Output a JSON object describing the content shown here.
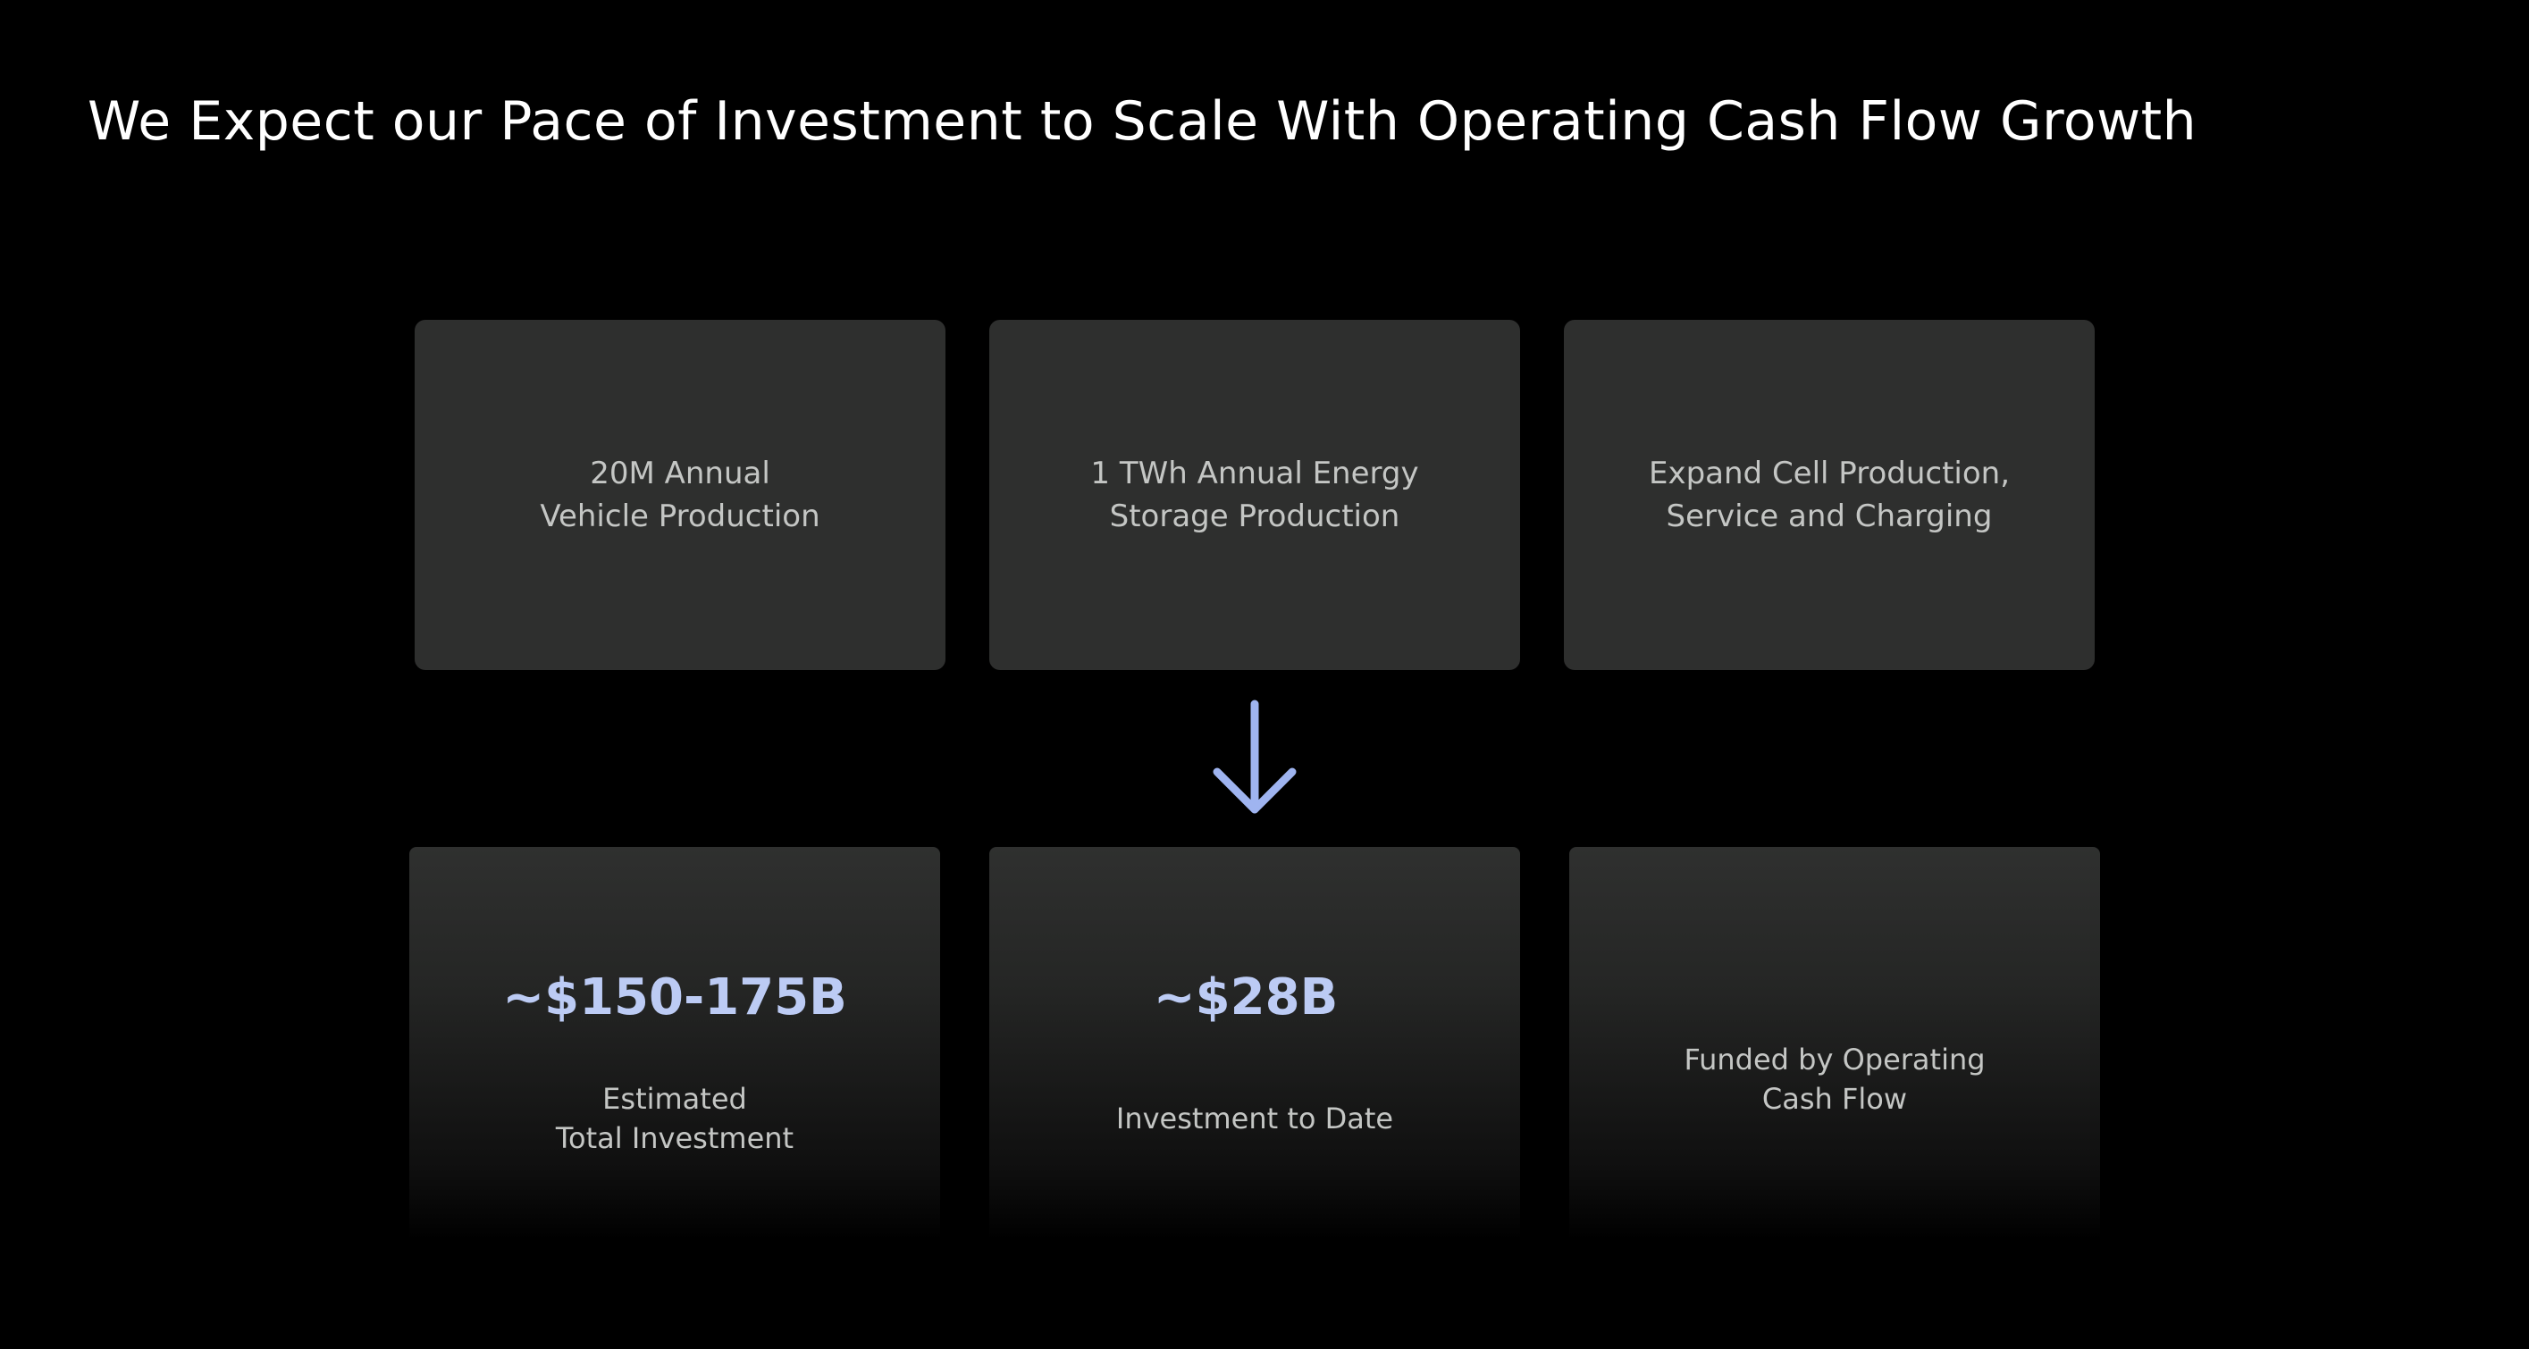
{
  "slide": {
    "title": "We Expect our Pace of Investment to Scale With Operating Cash Flow Growth"
  },
  "goals": [
    {
      "label": "20M Annual\nVehicle Production"
    },
    {
      "label": "1 TWh Annual Energy\nStorage Production"
    },
    {
      "label": "Expand Cell Production,\nService and Charging"
    }
  ],
  "arrow": {
    "icon": "arrow-down-icon",
    "color": "#9fb4f0"
  },
  "investment": {
    "total": {
      "value": "~$150-175B",
      "label": "Estimated\nTotal Investment"
    },
    "to_date": {
      "value": "~$28B",
      "label": "Investment to Date"
    },
    "funding": {
      "label": "Funded by Operating\nCash Flow"
    }
  },
  "colors": {
    "background": "#000000",
    "card": "#2e2f2e",
    "accent_value": "#bccbf4",
    "label_text": "#c4c6c4",
    "title_text": "#ffffff"
  }
}
